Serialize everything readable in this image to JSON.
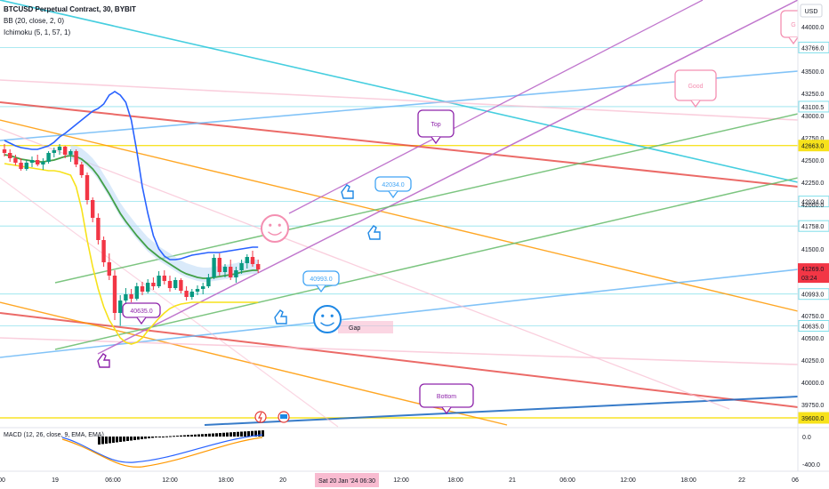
{
  "header": {
    "symbol_line": "BTCUSD Perpetual Contract, 30, BYBIT",
    "bb_line": "BB (20, close, 2, 0)",
    "ichimoku_line": "Ichimoku (5, 1, 57, 1)"
  },
  "price_axis": {
    "currency": "USD",
    "ticks": [
      "44000.0",
      "43766.0",
      "43500.0",
      "43250.0",
      "43100.5",
      "43000.0",
      "42750.0",
      "42663.0",
      "42500.0",
      "42250.0",
      "42034.0",
      "42000.0",
      "41758.0",
      "41500.0",
      "41269.0",
      "03:24",
      "40993.0",
      "40750.0",
      "40635.0",
      "40500.0",
      "40250.0",
      "40000.0",
      "39750.0",
      "39600.0"
    ],
    "current_price": "41269.0",
    "countdown": "03:24",
    "tagged_levels": [
      "43766.0",
      "43100.5",
      "42663.0",
      "42034.0",
      "41758.0",
      "40993.0",
      "40635.0",
      "39600.0"
    ]
  },
  "macd_axis": {
    "ticks": [
      "0.0",
      "-400.0"
    ]
  },
  "time_axis": {
    "ticks": [
      "00",
      "19",
      "06:00",
      "12:00",
      "18:00",
      "20",
      "Sat 20 Jan '24",
      "06:30",
      "12:00",
      "18:00",
      "21",
      "06:00",
      "12:00",
      "18:00",
      "22",
      "06"
    ],
    "highlight": "Sat 20 Jan '24   06:30"
  },
  "macd_label": "MACD (12, 26, close, 9, EMA, EMA)",
  "annotations": {
    "top": "Top",
    "good": "Good",
    "bottom": "Bottom",
    "gap": "Gap",
    "callout_42034": "42034.0",
    "callout_40993": "40993.0",
    "callout_40635": "40635.0",
    "partial_bubble": "G"
  },
  "colors": {
    "up": "#089981",
    "down": "#f23645",
    "bb": "#2962ff",
    "ichimoku_cloud": "#bbd8f5",
    "yellow": "#f7e21b",
    "purple": "#ba68c8",
    "orange": "#ff9800",
    "red": "#e53935",
    "pink": "#f8bbd0",
    "teal": "#26c6da",
    "green": "#66bb6a",
    "lightblue": "#64b5f6"
  },
  "chart_data": {
    "type": "candlestick",
    "title": "BTCUSD Perpetual Contract, 30, BYBIT",
    "ylabel": "USD",
    "ylim": [
      39500,
      44250
    ],
    "candles": [
      {
        "o": 42620,
        "h": 42680,
        "l": 42540,
        "c": 42580
      },
      {
        "o": 42580,
        "h": 42620,
        "l": 42480,
        "c": 42520
      },
      {
        "o": 42520,
        "h": 42560,
        "l": 42440,
        "c": 42470
      },
      {
        "o": 42470,
        "h": 42520,
        "l": 42380,
        "c": 42400
      },
      {
        "o": 42400,
        "h": 42500,
        "l": 42380,
        "c": 42470
      },
      {
        "o": 42470,
        "h": 42540,
        "l": 42420,
        "c": 42500
      },
      {
        "o": 42500,
        "h": 42560,
        "l": 42430,
        "c": 42450
      },
      {
        "o": 42450,
        "h": 42520,
        "l": 42390,
        "c": 42480
      },
      {
        "o": 42480,
        "h": 42600,
        "l": 42460,
        "c": 42580
      },
      {
        "o": 42580,
        "h": 42640,
        "l": 42530,
        "c": 42610
      },
      {
        "o": 42610,
        "h": 42680,
        "l": 42560,
        "c": 42650
      },
      {
        "o": 42650,
        "h": 42660,
        "l": 42520,
        "c": 42560
      },
      {
        "o": 42560,
        "h": 42620,
        "l": 42480,
        "c": 42600
      },
      {
        "o": 42600,
        "h": 42620,
        "l": 42420,
        "c": 42450
      },
      {
        "o": 42450,
        "h": 42480,
        "l": 42300,
        "c": 42330
      },
      {
        "o": 42330,
        "h": 42360,
        "l": 42000,
        "c": 42050
      },
      {
        "o": 42050,
        "h": 42080,
        "l": 41800,
        "c": 41850
      },
      {
        "o": 41850,
        "h": 41900,
        "l": 41550,
        "c": 41600
      },
      {
        "o": 41600,
        "h": 41640,
        "l": 41300,
        "c": 41350
      },
      {
        "o": 41350,
        "h": 41450,
        "l": 41150,
        "c": 41200
      },
      {
        "o": 41200,
        "h": 41260,
        "l": 40700,
        "c": 40780
      },
      {
        "o": 40780,
        "h": 40980,
        "l": 40635,
        "c": 40920
      },
      {
        "o": 40920,
        "h": 41060,
        "l": 40860,
        "c": 40990
      },
      {
        "o": 40990,
        "h": 41050,
        "l": 40900,
        "c": 40940
      },
      {
        "o": 40940,
        "h": 41120,
        "l": 40920,
        "c": 41080
      },
      {
        "o": 41080,
        "h": 41130,
        "l": 40980,
        "c": 41020
      },
      {
        "o": 41020,
        "h": 41160,
        "l": 41000,
        "c": 41120
      },
      {
        "o": 41120,
        "h": 41180,
        "l": 41040,
        "c": 41080
      },
      {
        "o": 41080,
        "h": 41250,
        "l": 41060,
        "c": 41200
      },
      {
        "o": 41200,
        "h": 41260,
        "l": 41100,
        "c": 41140
      },
      {
        "o": 41140,
        "h": 41200,
        "l": 41020,
        "c": 41060
      },
      {
        "o": 41060,
        "h": 41180,
        "l": 41040,
        "c": 41150
      },
      {
        "o": 41150,
        "h": 41170,
        "l": 41000,
        "c": 41030
      },
      {
        "o": 41030,
        "h": 41080,
        "l": 40920,
        "c": 40960
      },
      {
        "o": 40960,
        "h": 41050,
        "l": 40930,
        "c": 41020
      },
      {
        "o": 41020,
        "h": 41090,
        "l": 40980,
        "c": 41050
      },
      {
        "o": 41050,
        "h": 41120,
        "l": 40990,
        "c": 41080
      },
      {
        "o": 41080,
        "h": 41220,
        "l": 41060,
        "c": 41180
      },
      {
        "o": 41180,
        "h": 41440,
        "l": 41160,
        "c": 41400
      },
      {
        "o": 41400,
        "h": 41450,
        "l": 41200,
        "c": 41240
      },
      {
        "o": 41240,
        "h": 41330,
        "l": 41180,
        "c": 41300
      },
      {
        "o": 41300,
        "h": 41380,
        "l": 41150,
        "c": 41180
      },
      {
        "o": 41180,
        "h": 41300,
        "l": 41120,
        "c": 41260
      },
      {
        "o": 41260,
        "h": 41380,
        "l": 41220,
        "c": 41340
      },
      {
        "o": 41340,
        "h": 41440,
        "l": 41280,
        "c": 41410
      },
      {
        "o": 41410,
        "h": 41480,
        "l": 41300,
        "c": 41330
      },
      {
        "o": 41330,
        "h": 41380,
        "l": 41230,
        "c": 41269
      }
    ],
    "bb_upper": [
      42720,
      42690,
      42660,
      42640,
      42630,
      42620,
      42620,
      42640,
      42660,
      42700,
      42760,
      42800,
      42850,
      42900,
      42950,
      43000,
      43050,
      43080,
      43130,
      43230,
      43270,
      43230,
      43150,
      42950,
      42600,
      42200,
      41900,
      41650,
      41500,
      41420,
      41380,
      41380,
      41390,
      41410,
      41430,
      41440,
      41450,
      41460,
      41460,
      41460,
      41470,
      41480,
      41490,
      41500,
      41510,
      41520,
      41520
    ],
    "bb_basis": [
      42560,
      42550,
      42530,
      42510,
      42500,
      42490,
      42480,
      42480,
      42490,
      42500,
      42520,
      42540,
      42550,
      42540,
      42510,
      42460,
      42400,
      42320,
      42220,
      42120,
      42010,
      41900,
      41810,
      41730,
      41650,
      41580,
      41510,
      41460,
      41410,
      41370,
      41330,
      41290,
      41250,
      41220,
      41200,
      41180,
      41170,
      41170,
      41180,
      41190,
      41200,
      41210,
      41220,
      41240,
      41250,
      41260,
      41260
    ],
    "yellow_line": [
      42460,
      42450,
      42440,
      42430,
      42420,
      42410,
      42400,
      42390,
      42380,
      42380,
      42370,
      42350,
      42330,
      42200,
      41950,
      41600,
      41300,
      41050,
      40850,
      40700,
      40600,
      40500,
      40450,
      40430,
      40450,
      40500,
      40580,
      40650,
      40720,
      40780,
      40830,
      40860,
      40880,
      40890,
      40900,
      40900,
      40900,
      40900,
      40900,
      40900,
      40900,
      40900,
      40900,
      40900,
      40900,
      40900,
      40900
    ],
    "levels": [
      43766.0,
      43100.5,
      42663.0,
      42034.0,
      41758.0,
      40993.0,
      40635.0,
      39600.0
    ]
  }
}
